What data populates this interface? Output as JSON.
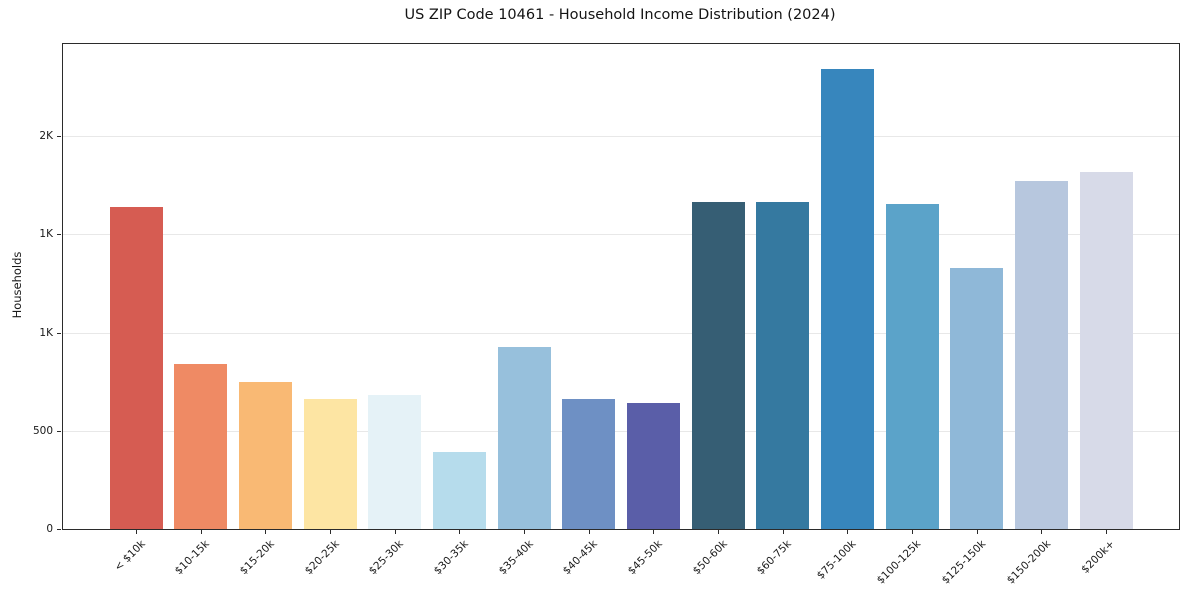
{
  "chart_data": {
    "type": "bar",
    "title": "US ZIP Code 10461 - Household Income Distribution (2024)",
    "xlabel": "",
    "ylabel": "Households",
    "ylim": [
      0,
      2470
    ],
    "grid": "horizontal",
    "legend": "none",
    "background_color": "#ffffff",
    "grid_color": "#e8e8e8",
    "spine_color": "#2b2b2b",
    "text_color": "#191919",
    "yticks": [
      {
        "value": 0,
        "label": "0"
      },
      {
        "value": 500,
        "label": "500"
      },
      {
        "value": 1000,
        "label": "1K"
      },
      {
        "value": 1500,
        "label": "1K"
      },
      {
        "value": 2000,
        "label": "2K"
      }
    ],
    "categories": [
      "< $10k",
      "$10-15k",
      "$15-20k",
      "$20-25k",
      "$25-30k",
      "$30-35k",
      "$35-40k",
      "$40-45k",
      "$45-50k",
      "$50-60k",
      "$60-75k",
      "$75-100k",
      "$100-125k",
      "$125-150k",
      "$150-200k",
      "$200k+"
    ],
    "values": [
      1642,
      838,
      748,
      663,
      680,
      392,
      928,
      662,
      643,
      1666,
      1664,
      2343,
      1654,
      1327,
      1774,
      1820
    ],
    "bar_colors": [
      "#d65c52",
      "#ef8a64",
      "#f9b974",
      "#fde5a3",
      "#e5f2f7",
      "#b6dcec",
      "#97c0dc",
      "#6e90c4",
      "#5a5ea8",
      "#365e74",
      "#3579a0",
      "#3786bd",
      "#5ba3c9",
      "#8fb8d8",
      "#b7c7de",
      "#d7dae8"
    ]
  }
}
